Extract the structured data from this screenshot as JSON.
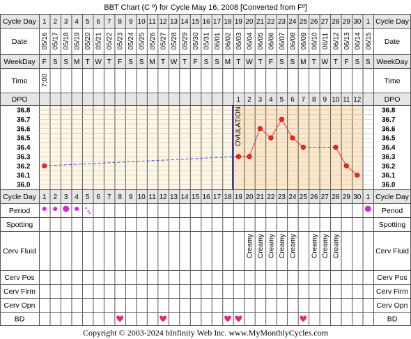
{
  "title": "BBT Chart (C º) for Cycle May 16, 2008  [Converted from Fº]",
  "copyright": "Copyright © 2003-2024 bInfinity Web Inc.     www.MyMonthlyCycles.com",
  "row_labels": {
    "cycle_day": "Cycle Day",
    "date": "Date",
    "weekday": "WeekDay",
    "time": "Time",
    "dpo": "DPO",
    "period": "Period",
    "spotting": "Spotting",
    "cerv_fluid": "Cerv Fluid",
    "cerv_pos": "Cerv Pos",
    "cerv_firm": "Cerv Firm",
    "cerv_opn": "Cerv Opn",
    "bd": "BD"
  },
  "cycle_days": [
    "1",
    "2",
    "3",
    "4",
    "5",
    "6",
    "7",
    "8",
    "9",
    "10",
    "11",
    "12",
    "13",
    "14",
    "15",
    "16",
    "17",
    "18",
    "19",
    "20",
    "21",
    "22",
    "23",
    "24",
    "25",
    "26",
    "27",
    "28",
    "29",
    "30",
    "1"
  ],
  "dates": [
    "05/16",
    "05/17",
    "05/18",
    "05/19",
    "05/20",
    "05/21",
    "05/22",
    "05/23",
    "05/24",
    "05/25",
    "05/26",
    "05/27",
    "05/28",
    "05/29",
    "05/30",
    "05/31",
    "06/01",
    "06/02",
    "06/03",
    "06/04",
    "06/05",
    "06/06",
    "06/07",
    "06/08",
    "06/09",
    "06/10",
    "06/11",
    "06/12",
    "06/13",
    "06/14",
    "06/15"
  ],
  "weekdays": [
    "F",
    "S",
    "S",
    "M",
    "T",
    "W",
    "T",
    "F",
    "S",
    "S",
    "M",
    "T",
    "W",
    "T",
    "F",
    "S",
    "S",
    "M",
    "T",
    "W",
    "T",
    "F",
    "S",
    "S",
    "M",
    "T",
    "W",
    "T",
    "F",
    "S",
    "S"
  ],
  "times": [
    "7:00",
    "",
    "",
    "",
    "",
    "",
    "",
    "",
    "",
    "",
    "",
    "",
    "",
    "",
    "",
    "",
    "",
    "",
    "",
    "",
    "",
    "",
    "",
    "",
    "",
    "",
    "",
    "",
    "",
    "",
    ""
  ],
  "dpo": [
    "",
    "",
    "",
    "",
    "",
    "",
    "",
    "",
    "",
    "",
    "",
    "",
    "",
    "",
    "",
    "",
    "",
    "",
    "1",
    "2",
    "3",
    "4",
    "5",
    "6",
    "7",
    "8",
    "9",
    "10",
    "11",
    "12",
    ""
  ],
  "cerv_fluid": [
    "",
    "",
    "",
    "",
    "",
    "",
    "",
    "",
    "",
    "",
    "",
    "",
    "",
    "",
    "",
    "",
    "",
    "",
    "",
    "Creamy",
    "Creamy",
    "Creamy",
    "Creamy",
    "Creamy",
    "",
    "Creamy",
    "Creamy",
    "Creamy",
    "",
    "",
    ""
  ],
  "period": [
    3,
    3,
    4,
    3,
    1,
    0,
    0,
    0,
    0,
    0,
    0,
    0,
    0,
    0,
    0,
    0,
    0,
    0,
    0,
    0,
    0,
    0,
    0,
    0,
    0,
    0,
    0,
    0,
    0,
    0,
    4
  ],
  "bd": [
    false,
    false,
    false,
    false,
    false,
    false,
    false,
    true,
    false,
    false,
    false,
    true,
    false,
    false,
    false,
    false,
    false,
    true,
    true,
    false,
    false,
    false,
    false,
    false,
    true,
    false,
    false,
    false,
    false,
    false,
    false
  ],
  "ovulation_label": "OVULATION",
  "colors": {
    "grid": "#555555",
    "pre_ovulation_bg": "#fdf7e4",
    "post_ovulation_bg": "#fce8c8",
    "ovulation_line": "#1a1aa0",
    "temp_line": "#e03030",
    "temp_point": "#ff2020",
    "dashed_line": "#4444dd",
    "period_dot": "#dd22dd",
    "heart": "#ee2277"
  },
  "chart_data": {
    "type": "line",
    "title": "BBT Chart (C º) for Cycle May 16, 2008  [Converted from Fº]",
    "x": [
      "05/16",
      "05/17",
      "05/18",
      "05/19",
      "05/20",
      "05/21",
      "05/22",
      "05/23",
      "05/24",
      "05/25",
      "05/26",
      "05/27",
      "05/28",
      "05/29",
      "05/30",
      "05/31",
      "06/01",
      "06/02",
      "06/03",
      "06/04",
      "06/05",
      "06/06",
      "06/07",
      "06/08",
      "06/09",
      "06/10",
      "06/11",
      "06/12",
      "06/13",
      "06/14",
      "06/15"
    ],
    "y_ticks": [
      "36.8",
      "36.7",
      "36.6",
      "36.5",
      "36.4",
      "36.3",
      "36.2",
      "36.1",
      "36.0"
    ],
    "ylim": [
      36.0,
      36.8
    ],
    "ovulation_after_day": 18,
    "coverline": null,
    "series": [
      {
        "values": [
          36.2,
          null,
          null,
          null,
          null,
          null,
          null,
          null,
          null,
          null,
          null,
          null,
          null,
          null,
          null,
          null,
          null,
          null,
          36.3,
          36.3,
          36.6,
          36.5,
          36.7,
          36.5,
          36.4,
          null,
          null,
          36.4,
          36.2,
          36.1,
          null
        ]
      }
    ]
  }
}
